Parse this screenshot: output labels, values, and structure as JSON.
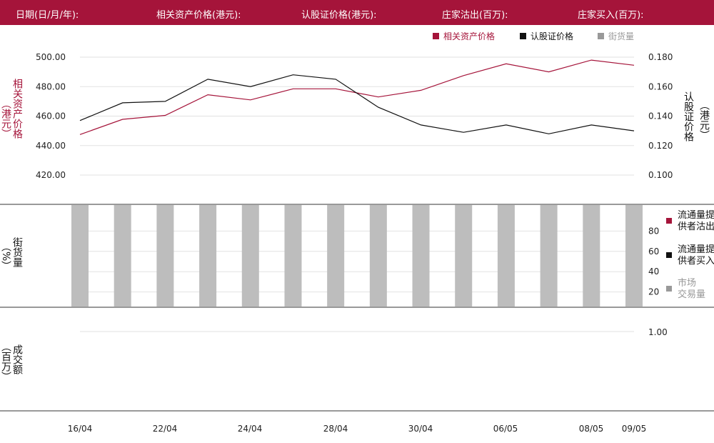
{
  "header": {
    "date_label": "日期(日/月/年):",
    "asset_label": "相关资产价格(港元):",
    "warrant_label": "认股证价格(港元):",
    "mm_sell_label": "庄家沽出(百万):",
    "mm_buy_label": "庄家买入(百万):"
  },
  "legend_top": {
    "asset": "相关资产价格",
    "warrant": "认股证价格",
    "outstanding": "街货量"
  },
  "axis_labels": {
    "price_left_1": "相关资产价格",
    "price_left_2": "（港元）",
    "price_right_1": "认股证价格",
    "price_right_2": "（港元）",
    "pct_1": "街货量",
    "pct_2": "（%）",
    "vol_1": "成交额",
    "vol_2": "（百万）"
  },
  "legend_side": {
    "mm_sell_1": "流通量提",
    "mm_sell_2": "供者沽出",
    "mm_buy_1": "流通量提",
    "mm_buy_2": "供者买入",
    "market_1": "市场",
    "market_2": "交易量"
  },
  "colors": {
    "asset": "#a5143a",
    "warrant": "#111111",
    "bar": "#bdbdbd",
    "legend_bar": "#999999",
    "market_text": "#999999"
  },
  "chart_data": {
    "type": "line",
    "x_ticks": [
      "16/04",
      "22/04",
      "24/04",
      "28/04",
      "30/04",
      "06/05",
      "08/05",
      "09/05"
    ],
    "left_axis": {
      "ticks": [
        "500.00",
        "480.00",
        "460.00",
        "440.00",
        "420.00"
      ],
      "range": [
        420,
        500
      ]
    },
    "right_axis": {
      "ticks": [
        "0.180",
        "0.160",
        "0.140",
        "0.120",
        "0.100"
      ],
      "range": [
        0.1,
        0.18
      ]
    },
    "series": [
      {
        "name": "相关资产价格",
        "axis": "left",
        "values": [
          447.5,
          457.8,
          460.5,
          474.5,
          471,
          478.5,
          478.5,
          473,
          477.5,
          487.5,
          495.5,
          490,
          498,
          494.5
        ]
      },
      {
        "name": "认股证价格",
        "axis": "right",
        "values": [
          0.137,
          0.149,
          0.15,
          0.165,
          0.16,
          0.168,
          0.165,
          0.146,
          0.134,
          0.129,
          0.134,
          0.128,
          0.134,
          0.13
        ]
      }
    ],
    "outstanding": {
      "axis_ticks": [
        "80",
        "60",
        "40",
        "20"
      ],
      "range": [
        0,
        100
      ],
      "values": [
        100,
        100,
        100,
        100,
        100,
        100,
        100,
        100,
        100,
        100,
        100,
        100,
        100,
        100
      ]
    },
    "volume": {
      "axis_ticks": [
        "1.00"
      ]
    }
  }
}
